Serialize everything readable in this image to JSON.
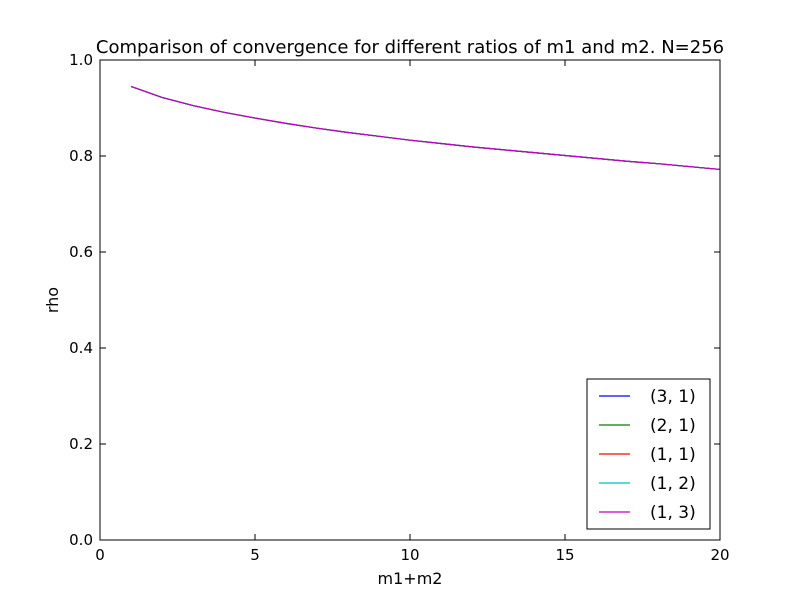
{
  "chart_data": {
    "type": "line",
    "title": "Comparison of convergence for different ratios of m1 and m2. N=256",
    "xlabel": "m1+m2",
    "ylabel": "rho",
    "xlim": [
      0,
      20
    ],
    "ylim": [
      0.0,
      1.0
    ],
    "xticks": [
      "0",
      "5",
      "10",
      "15",
      "20"
    ],
    "yticks": [
      "0.0",
      "0.2",
      "0.4",
      "0.6",
      "0.8",
      "1.0"
    ],
    "grid": false,
    "legend_position": "lower-right",
    "x": [
      1,
      2,
      3,
      4,
      5,
      6,
      7,
      8,
      9,
      10,
      11,
      12,
      13,
      14,
      15,
      16,
      17,
      18,
      19,
      20
    ],
    "series": [
      {
        "name": "(3, 1)",
        "color": "#0000ff",
        "values": [
          0.945,
          0.922,
          0.905,
          0.891,
          0.879,
          0.868,
          0.858,
          0.849,
          0.841,
          0.833,
          0.826,
          0.819,
          0.813,
          0.807,
          0.801,
          0.795,
          0.789,
          0.784,
          0.778,
          0.772
        ]
      },
      {
        "name": "(2, 1)",
        "color": "#008000",
        "values": [
          0.945,
          0.922,
          0.905,
          0.891,
          0.879,
          0.868,
          0.858,
          0.849,
          0.841,
          0.833,
          0.826,
          0.819,
          0.813,
          0.807,
          0.801,
          0.795,
          0.789,
          0.784,
          0.778,
          0.772
        ]
      },
      {
        "name": "(1, 1)",
        "color": "#ff0000",
        "values": [
          0.945,
          0.922,
          0.905,
          0.891,
          0.879,
          0.868,
          0.858,
          0.849,
          0.841,
          0.833,
          0.826,
          0.819,
          0.813,
          0.807,
          0.801,
          0.795,
          0.789,
          0.784,
          0.778,
          0.772
        ]
      },
      {
        "name": "(1, 2)",
        "color": "#00bfbf",
        "values": [
          0.945,
          0.922,
          0.905,
          0.891,
          0.879,
          0.868,
          0.858,
          0.849,
          0.841,
          0.833,
          0.826,
          0.819,
          0.813,
          0.807,
          0.801,
          0.795,
          0.789,
          0.784,
          0.778,
          0.772
        ]
      },
      {
        "name": "(1, 3)",
        "color": "#bf00bf",
        "values": [
          0.945,
          0.922,
          0.905,
          0.891,
          0.879,
          0.868,
          0.858,
          0.849,
          0.841,
          0.833,
          0.826,
          0.819,
          0.813,
          0.807,
          0.801,
          0.795,
          0.789,
          0.784,
          0.778,
          0.772
        ]
      }
    ]
  }
}
